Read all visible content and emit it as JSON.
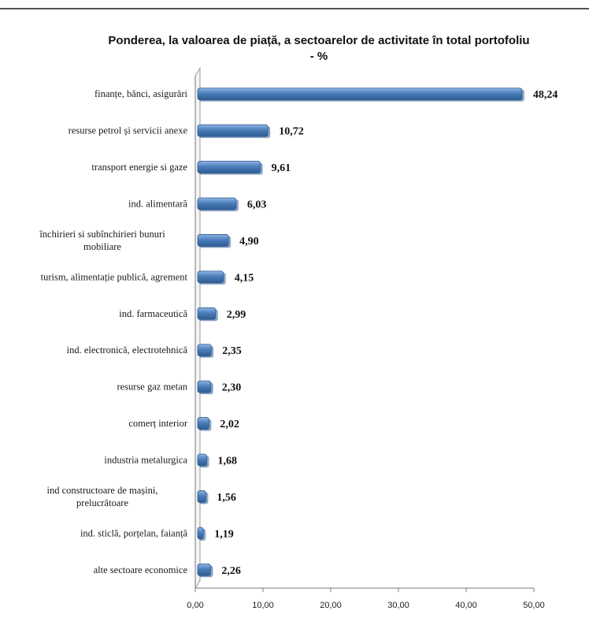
{
  "chart_data": {
    "type": "bar",
    "orientation": "horizontal",
    "title_line1": "Ponderea, la valoarea de piață, a sectoarelor de activitate în total portofoliu",
    "title_line2": "- %",
    "categories": [
      [
        "finanțe, bănci, asigurări"
      ],
      [
        "resurse petrol și servicii anexe"
      ],
      [
        "transport energie si gaze"
      ],
      [
        "ind. alimentară"
      ],
      [
        "închirieri si subînchirieri bunuri",
        "mobiliare"
      ],
      [
        "turism, alimentație publică, agrement"
      ],
      [
        "ind. farmaceutică"
      ],
      [
        "ind. electronică, electrotehnică"
      ],
      [
        "resurse gaz metan"
      ],
      [
        "comerț interior"
      ],
      [
        "industria metalurgica"
      ],
      [
        "ind constructoare de mașini,",
        "prelucrătoare"
      ],
      [
        "ind. sticlă, porțelan, faianță"
      ],
      [
        "alte sectoare economice"
      ]
    ],
    "values": [
      48.24,
      10.72,
      9.61,
      6.03,
      4.9,
      4.15,
      2.99,
      2.35,
      2.3,
      2.02,
      1.68,
      1.56,
      1.19,
      2.26
    ],
    "value_labels": [
      "48,24",
      "10,72",
      "9,61",
      "6,03",
      "4,90",
      "4,15",
      "2,99",
      "2,35",
      "2,30",
      "2,02",
      "1,68",
      "1,56",
      "1,19",
      "2,26"
    ],
    "x_ticks": [
      0,
      10,
      20,
      30,
      40,
      50
    ],
    "x_tick_labels": [
      "0,00",
      "10,00",
      "20,00",
      "30,00",
      "40,00",
      "50,00"
    ],
    "xlim": [
      0,
      50
    ],
    "grid": false,
    "legend": "none",
    "colors": {
      "bar": "#4a7ebb",
      "bar_dark": "#2f5b91",
      "bar_light": "#8fb4e3"
    }
  }
}
